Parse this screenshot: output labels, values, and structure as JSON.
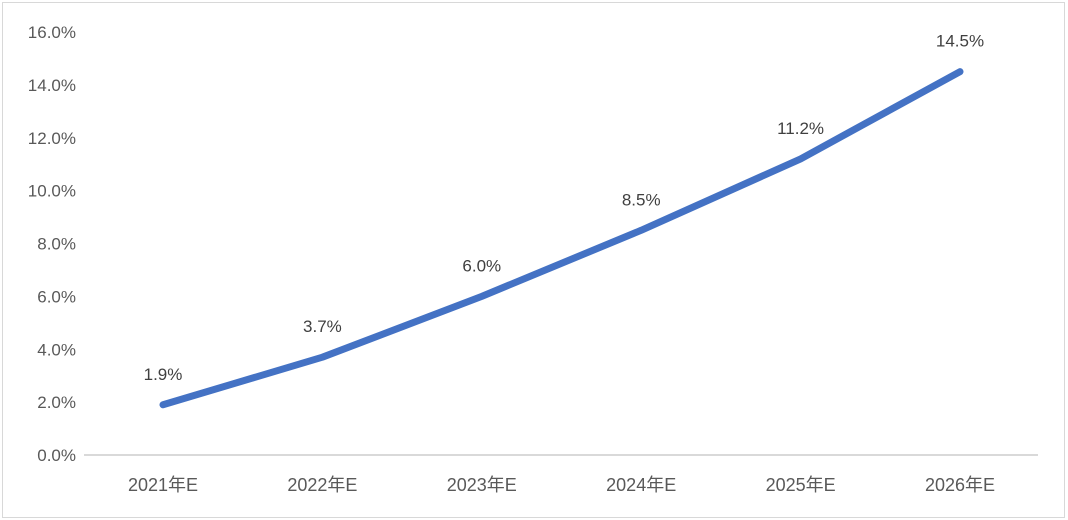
{
  "chart_data": {
    "type": "line",
    "categories": [
      "2021年E",
      "2022年E",
      "2023年E",
      "2024年E",
      "2025年E",
      "2026年E"
    ],
    "values": [
      1.9,
      3.7,
      6.0,
      8.5,
      11.2,
      14.5
    ],
    "data_labels": [
      "1.9%",
      "3.7%",
      "6.0%",
      "8.5%",
      "11.2%",
      "14.5%"
    ],
    "ylim": [
      0,
      16
    ],
    "ytick_values": [
      0,
      2,
      4,
      6,
      8,
      10,
      12,
      14,
      16
    ],
    "ytick_labels": [
      "0.0%",
      "2.0%",
      "4.0%",
      "6.0%",
      "8.0%",
      "10.0%",
      "12.0%",
      "14.0%",
      "16.0%"
    ],
    "grid": false,
    "legend": false,
    "colors": {
      "line": "#4472C4",
      "axis_line": "#D9D9D9",
      "tick_text": "#595959",
      "data_label_text": "#404040",
      "border": "#D8D8D8",
      "background": "#FFFFFF"
    }
  }
}
